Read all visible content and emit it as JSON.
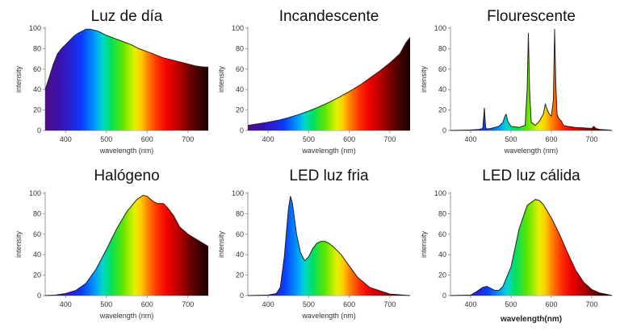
{
  "chart_data": [
    {
      "type": "area",
      "title": "Luz de día",
      "xlabel": "wavelength (nm)",
      "ylabel": "intensity",
      "xlim": [
        350,
        750
      ],
      "ylim": [
        0,
        100
      ],
      "xticks": [
        "400",
        "500",
        "600",
        "700"
      ],
      "yticks": [
        "0",
        "20",
        "40",
        "60",
        "80",
        "100"
      ],
      "x": [
        350,
        360,
        370,
        380,
        390,
        400,
        410,
        420,
        430,
        440,
        450,
        460,
        470,
        480,
        490,
        500,
        520,
        540,
        560,
        580,
        600,
        620,
        640,
        660,
        680,
        700,
        720,
        740,
        750
      ],
      "y": [
        40,
        52,
        65,
        75,
        80,
        84,
        88,
        92,
        95,
        97,
        99,
        99,
        98,
        97,
        95,
        93,
        90,
        87,
        84,
        80,
        77,
        74,
        71,
        69,
        67,
        65,
        63,
        62,
        62
      ],
      "fill": "spectrum"
    },
    {
      "type": "area",
      "title": "Incandescente",
      "xlabel": "wavelength (nm)",
      "ylabel": "intensity",
      "xlim": [
        350,
        750
      ],
      "ylim": [
        0,
        100
      ],
      "xticks": [
        "400",
        "500",
        "600",
        "700"
      ],
      "yticks": [
        "0",
        "20",
        "40",
        "60",
        "80",
        "100"
      ],
      "x": [
        350,
        375,
        400,
        425,
        450,
        475,
        500,
        525,
        550,
        575,
        600,
        625,
        650,
        675,
        700,
        725,
        740,
        750
      ],
      "y": [
        5,
        6.5,
        8,
        10,
        12.5,
        15.5,
        19,
        23,
        27.5,
        32.5,
        38,
        44,
        51,
        58,
        66,
        75,
        86,
        91
      ],
      "fill": "spectrum"
    },
    {
      "type": "area",
      "title": "Flourescente",
      "xlabel": "wavelength (nm)",
      "ylabel": "intensity",
      "xlim": [
        350,
        750
      ],
      "ylim": [
        0,
        100
      ],
      "xticks": [
        "400",
        "500",
        "600",
        "700"
      ],
      "yticks": [
        "0",
        "20",
        "40",
        "60",
        "80",
        "100"
      ],
      "x": [
        350,
        400,
        420,
        430,
        434,
        437,
        440,
        450,
        470,
        480,
        485,
        488,
        492,
        500,
        520,
        535,
        540,
        543,
        546,
        550,
        560,
        570,
        580,
        585,
        590,
        595,
        600,
        605,
        608,
        611,
        614,
        618,
        625,
        630,
        640,
        660,
        680,
        700,
        705,
        710,
        720,
        740,
        750
      ],
      "y": [
        0,
        0.5,
        1,
        2,
        22,
        3,
        1.5,
        2,
        4,
        8,
        14,
        16,
        9,
        4,
        3,
        5,
        40,
        95,
        40,
        8,
        5,
        9,
        16,
        26,
        20,
        16,
        14,
        30,
        99,
        45,
        16,
        12,
        9,
        5,
        4,
        3,
        2.5,
        2,
        4,
        2,
        1,
        0.5,
        0
      ],
      "fill": "spectrum"
    },
    {
      "type": "area",
      "title": "Halógeno",
      "xlabel": "wavelength (nm)",
      "ylabel": "intensity",
      "xlim": [
        350,
        750
      ],
      "ylim": [
        0,
        100
      ],
      "xticks": [
        "400",
        "500",
        "600",
        "700"
      ],
      "yticks": [
        "0",
        "20",
        "40",
        "60",
        "80",
        "100"
      ],
      "x": [
        350,
        375,
        400,
        425,
        450,
        475,
        500,
        525,
        550,
        575,
        590,
        600,
        615,
        625,
        640,
        650,
        665,
        680,
        700,
        725,
        750
      ],
      "y": [
        0,
        0.5,
        2,
        5,
        12,
        26,
        45,
        65,
        82,
        94,
        98,
        97,
        92,
        90,
        90,
        86,
        78,
        67,
        60,
        54,
        48
      ],
      "fill": "spectrum"
    },
    {
      "type": "area",
      "title": "LED luz fria",
      "xlabel": "wavelength (nm)",
      "ylabel": "intensity",
      "xlim": [
        350,
        750
      ],
      "ylim": [
        0,
        100
      ],
      "xticks": [
        "400",
        "500",
        "600",
        "700"
      ],
      "yticks": [
        "0",
        "20",
        "40",
        "60",
        "80",
        "100"
      ],
      "x": [
        350,
        400,
        420,
        430,
        440,
        450,
        455,
        460,
        470,
        480,
        490,
        500,
        510,
        520,
        530,
        540,
        550,
        560,
        580,
        600,
        620,
        650,
        700,
        750
      ],
      "y": [
        0,
        0.5,
        2,
        8,
        38,
        85,
        97,
        90,
        60,
        42,
        34,
        38,
        46,
        51,
        53,
        53,
        51,
        48,
        40,
        29,
        18,
        8,
        1.5,
        0
      ],
      "fill": "spectrum"
    },
    {
      "type": "area",
      "title": "LED luz cálida",
      "xlabel": "wavelength(nm)",
      "ylabel": "intensity",
      "xlim": [
        350,
        750
      ],
      "ylim": [
        0,
        100
      ],
      "xticks": [
        "400",
        "500",
        "600",
        "700"
      ],
      "yticks": [
        "0",
        "20",
        "40",
        "60",
        "80",
        "100"
      ],
      "x": [
        350,
        400,
        415,
        430,
        440,
        450,
        460,
        470,
        480,
        500,
        520,
        540,
        560,
        570,
        580,
        600,
        620,
        640,
        660,
        680,
        700,
        720,
        740,
        750
      ],
      "y": [
        0,
        0.5,
        4,
        8,
        9,
        7,
        5,
        5,
        9,
        28,
        65,
        88,
        94,
        93,
        89,
        76,
        60,
        42,
        25,
        13,
        6,
        2.5,
        1,
        0
      ],
      "fill": "spectrum"
    }
  ]
}
